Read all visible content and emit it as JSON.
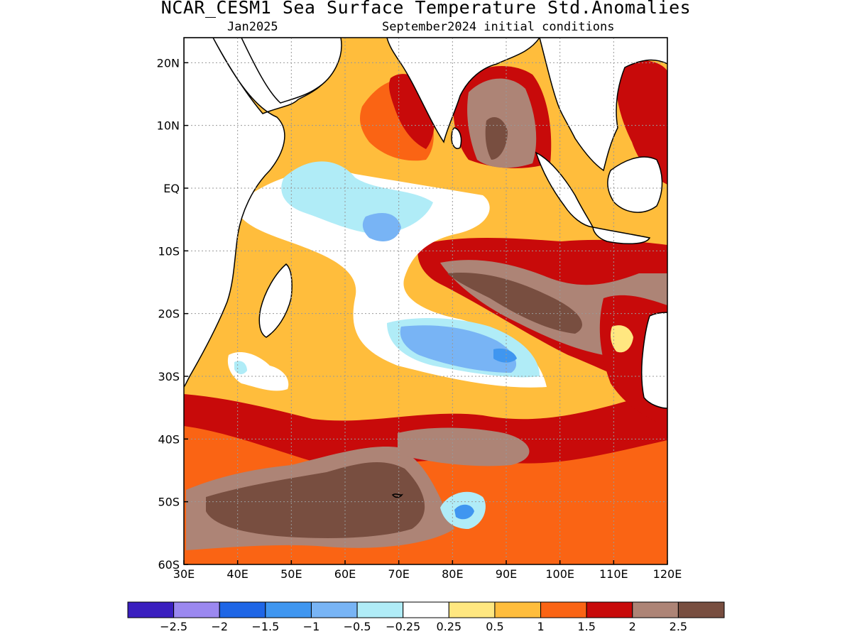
{
  "header": {
    "title": "NCAR_CESM1 Sea Surface Temperature Std.Anomalies",
    "valid_month": "Jan2025",
    "initial_conditions": "September2024 initial conditions"
  },
  "map": {
    "lon_range": [
      30,
      120
    ],
    "lat_range": [
      -60,
      24
    ],
    "x_ticks": [
      {
        "lon": 30,
        "label": "30E"
      },
      {
        "lon": 40,
        "label": "40E"
      },
      {
        "lon": 50,
        "label": "50E"
      },
      {
        "lon": 60,
        "label": "60E"
      },
      {
        "lon": 70,
        "label": "70E"
      },
      {
        "lon": 80,
        "label": "80E"
      },
      {
        "lon": 90,
        "label": "90E"
      },
      {
        "lon": 100,
        "label": "100E"
      },
      {
        "lon": 110,
        "label": "110E"
      },
      {
        "lon": 120,
        "label": "120E"
      }
    ],
    "y_ticks": [
      {
        "lat": 20,
        "label": "20N"
      },
      {
        "lat": 10,
        "label": "10N"
      },
      {
        "lat": 0,
        "label": "EQ"
      },
      {
        "lat": -10,
        "label": "10S"
      },
      {
        "lat": -20,
        "label": "20S"
      },
      {
        "lat": -30,
        "label": "30S"
      },
      {
        "lat": -40,
        "label": "40S"
      },
      {
        "lat": -50,
        "label": "50S"
      },
      {
        "lat": -60,
        "label": "60S"
      }
    ],
    "gridlines": "dotted"
  },
  "colorbar": {
    "colors": [
      "#3a1fbf",
      "#9b88f0",
      "#1f66e6",
      "#3f96f0",
      "#78b4f5",
      "#b0ecf7",
      "#ffffff",
      "#ffe780",
      "#ffbd3c",
      "#fa6414",
      "#c80a0a",
      "#ad8476",
      "#784e40"
    ],
    "labels": [
      "−2.5",
      "−2",
      "−1.5",
      "−1",
      "−0.5",
      "−0.25",
      "0.25",
      "0.5",
      "1",
      "1.5",
      "2",
      "2.5"
    ]
  }
}
